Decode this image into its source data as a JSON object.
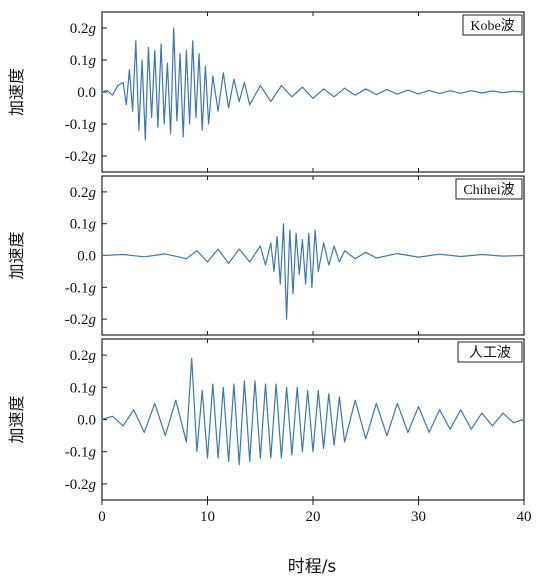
{
  "chart_data": {
    "type": "line",
    "x_label": "时程/s",
    "x_ticks": [
      "0",
      "10",
      "20",
      "30",
      "40"
    ],
    "xlim": [
      0,
      40
    ],
    "line_color": "#3a78b2",
    "panels": [
      {
        "name": "Kobe波",
        "y_label": "加速度",
        "ylim": [
          -0.25,
          0.25
        ],
        "y_ticks": [
          "0.2g",
          "0.1g",
          "0.0",
          "-0.1g",
          "-0.2g"
        ],
        "series": {
          "x": [
            0,
            0.5,
            1,
            1.5,
            2,
            2.3,
            2.6,
            2.9,
            3.2,
            3.5,
            3.8,
            4.1,
            4.4,
            4.7,
            5,
            5.3,
            5.6,
            5.9,
            6.2,
            6.5,
            6.8,
            7.1,
            7.4,
            7.7,
            8,
            8.3,
            8.6,
            8.9,
            9.2,
            9.5,
            9.8,
            10.1,
            10.5,
            11,
            11.5,
            12,
            12.5,
            13,
            13.5,
            14,
            15,
            16,
            17,
            18,
            19,
            20,
            21,
            22,
            23,
            24,
            25,
            26,
            27,
            28,
            29,
            30,
            31,
            32,
            33,
            34,
            35,
            36,
            37,
            38,
            39,
            40
          ],
          "y": [
            0,
            0.005,
            -0.01,
            0.02,
            0.03,
            -0.04,
            0.07,
            -0.06,
            0.16,
            -0.12,
            0.1,
            -0.15,
            0.14,
            -0.08,
            0.13,
            -0.11,
            0.15,
            -0.1,
            0.09,
            -0.13,
            0.2,
            -0.09,
            0.12,
            -0.14,
            0.13,
            -0.1,
            0.16,
            -0.08,
            0.12,
            -0.12,
            0.08,
            -0.1,
            0.05,
            -0.06,
            0.06,
            -0.05,
            0.04,
            -0.03,
            0.03,
            -0.04,
            0.02,
            -0.03,
            0.02,
            -0.015,
            0.015,
            -0.02,
            0.01,
            -0.015,
            0.012,
            -0.01,
            0.01,
            -0.008,
            0.008,
            -0.007,
            0.006,
            -0.006,
            0.005,
            -0.005,
            0.004,
            -0.004,
            0.004,
            -0.003,
            0.003,
            -0.002,
            0.002,
            0
          ]
        }
      },
      {
        "name": "Chihei波",
        "y_label": "加速度",
        "ylim": [
          -0.25,
          0.25
        ],
        "y_ticks": [
          "0.2g",
          "0.1g",
          "0.0",
          "-0.1g",
          "-0.2g"
        ],
        "series": {
          "x": [
            0,
            2,
            4,
            6,
            8,
            9,
            10,
            11,
            12,
            13,
            14,
            15,
            15.5,
            16,
            16.3,
            16.6,
            16.9,
            17.2,
            17.5,
            17.8,
            18.1,
            18.4,
            18.7,
            19,
            19.3,
            19.6,
            19.9,
            20.2,
            20.5,
            21,
            21.5,
            22,
            22.5,
            23,
            24,
            25,
            26,
            28,
            30,
            32,
            34,
            36,
            38,
            40
          ],
          "y": [
            0,
            0.003,
            -0.004,
            0.005,
            -0.01,
            0.015,
            -0.02,
            0.02,
            -0.025,
            0.02,
            -0.02,
            0.03,
            -0.03,
            0.04,
            -0.05,
            0.06,
            -0.09,
            0.1,
            -0.2,
            0.08,
            -0.12,
            0.07,
            -0.06,
            0.05,
            -0.09,
            0.07,
            -0.1,
            0.08,
            -0.05,
            0.04,
            -0.03,
            0.03,
            -0.02,
            0.015,
            -0.01,
            0.01,
            -0.008,
            0.006,
            -0.005,
            0.004,
            -0.003,
            0.003,
            -0.002,
            0
          ]
        }
      },
      {
        "name": "人工波",
        "y_label": "加速度",
        "ylim": [
          -0.25,
          0.25
        ],
        "y_ticks": [
          "0.2g",
          "0.1g",
          "0.0",
          "-0.1g",
          "-0.2g"
        ],
        "series": {
          "x": [
            0,
            1,
            2,
            3,
            4,
            5,
            6,
            7,
            8,
            8.5,
            9,
            9.5,
            10,
            10.5,
            11,
            11.5,
            12,
            12.5,
            13,
            13.5,
            14,
            14.5,
            15,
            15.5,
            16,
            16.5,
            17,
            17.5,
            18,
            18.5,
            19,
            19.5,
            20,
            20.5,
            21,
            21.5,
            22,
            22.5,
            23,
            24,
            25,
            26,
            27,
            28,
            29,
            30,
            31,
            32,
            33,
            34,
            35,
            36,
            37,
            38,
            39,
            40
          ],
          "y": [
            0,
            0.01,
            -0.02,
            0.03,
            -0.04,
            0.05,
            -0.05,
            0.06,
            -0.07,
            0.19,
            -0.1,
            0.09,
            -0.12,
            0.11,
            -0.12,
            0.1,
            -0.13,
            0.11,
            -0.14,
            0.12,
            -0.13,
            0.12,
            -0.12,
            0.11,
            -0.12,
            0.11,
            -0.12,
            0.1,
            -0.11,
            0.1,
            -0.1,
            0.09,
            -0.1,
            0.09,
            -0.09,
            0.08,
            -0.08,
            0.07,
            -0.07,
            0.06,
            -0.06,
            0.05,
            -0.05,
            0.05,
            -0.04,
            0.04,
            -0.04,
            0.03,
            -0.03,
            0.03,
            -0.03,
            0.02,
            -0.02,
            0.02,
            -0.01,
            0
          ]
        }
      }
    ]
  }
}
